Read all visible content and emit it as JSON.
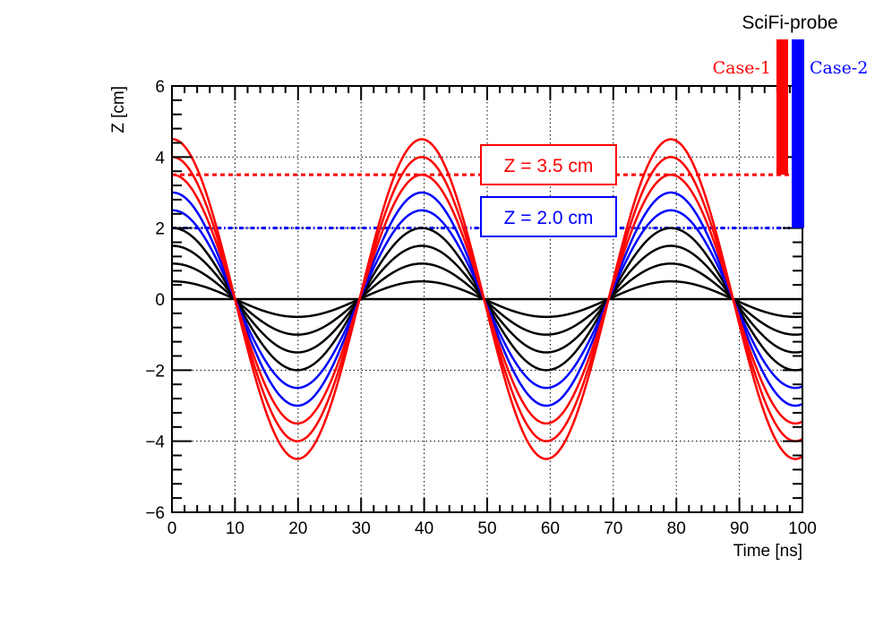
{
  "chart_data": {
    "type": "line",
    "xlabel": "Time [ns]",
    "ylabel": "Z [cm]",
    "xlim": [
      0,
      100
    ],
    "ylim": [
      -6,
      6
    ],
    "x_ticks": [
      0,
      10,
      20,
      30,
      40,
      50,
      60,
      70,
      80,
      90,
      100
    ],
    "y_ticks": [
      -6,
      -4,
      -2,
      0,
      2,
      4,
      6
    ],
    "grid": true,
    "period_ns": 39.5,
    "phase_zero_ns": 10,
    "colors": {
      "red": "#ff0000",
      "blue": "#0000ff",
      "black": "#000000"
    },
    "series": [
      {
        "amplitude": 0.0,
        "color": "black"
      },
      {
        "amplitude": 0.5,
        "color": "black"
      },
      {
        "amplitude": 1.0,
        "color": "black"
      },
      {
        "amplitude": 1.5,
        "color": "black"
      },
      {
        "amplitude": 2.0,
        "color": "black"
      },
      {
        "amplitude": 2.5,
        "color": "blue"
      },
      {
        "amplitude": 3.0,
        "color": "blue"
      },
      {
        "amplitude": 3.5,
        "color": "red"
      },
      {
        "amplitude": 4.0,
        "color": "red"
      },
      {
        "amplitude": 4.5,
        "color": "red"
      }
    ],
    "thresholds": [
      {
        "z": 3.5,
        "color": "red",
        "label": "Z = 3.5 cm",
        "case": "Case-1"
      },
      {
        "z": 2.0,
        "color": "blue",
        "label": "Z = 2.0 cm",
        "case": "Case-2"
      }
    ],
    "probe_title": "SciFi-probe"
  }
}
